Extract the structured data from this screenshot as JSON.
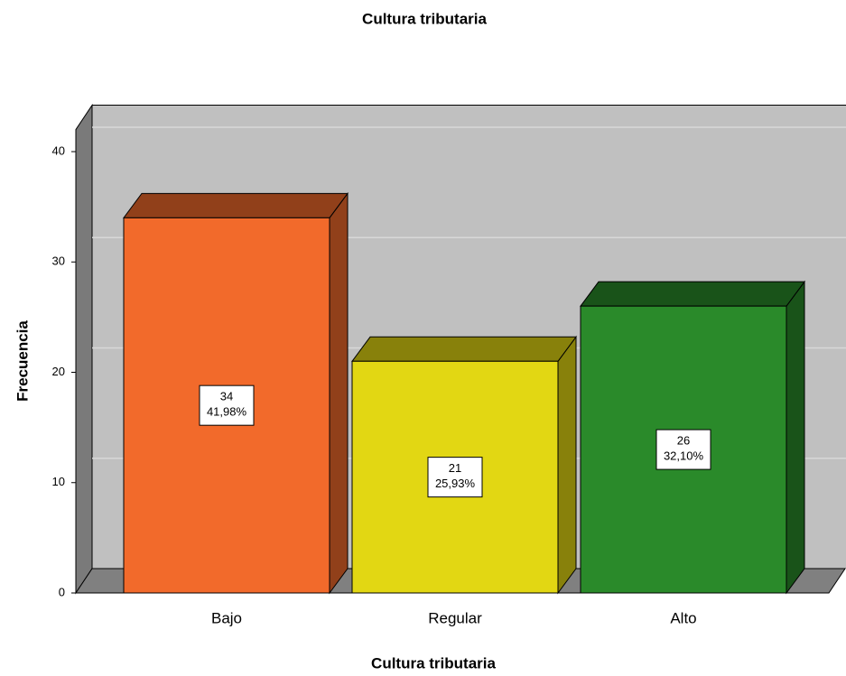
{
  "chart_data": {
    "type": "bar3d",
    "title": "Cultura tributaria",
    "x_label": "Cultura tributaria",
    "y_label": "Frecuencia",
    "categories": [
      "Bajo",
      "Regular",
      "Alto"
    ],
    "values": [
      34,
      21,
      26
    ],
    "percentages": [
      41.98,
      25.93,
      32.1
    ],
    "percentage_labels": [
      "41,98%",
      "25,93%",
      "32,10%"
    ],
    "colors": [
      "#f26a2b",
      "#e2d713",
      "#2a8a2a"
    ],
    "ylim": [
      0,
      42
    ],
    "yticks": [
      0,
      10,
      20,
      30,
      40
    ],
    "grid": true
  }
}
